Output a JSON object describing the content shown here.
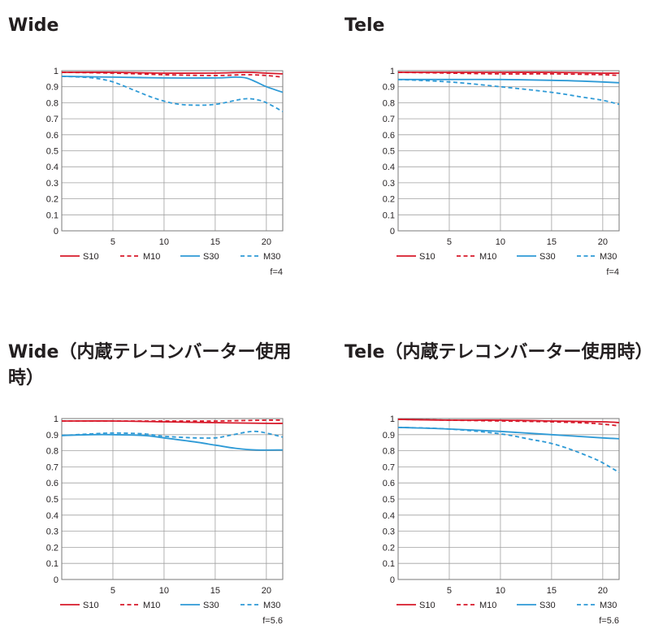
{
  "chart_data": [
    {
      "type": "line",
      "title": "Wide",
      "aperture": "f=4",
      "xlim": [
        0,
        21.6
      ],
      "ylim": [
        0,
        1
      ],
      "x_ticks": [
        "5",
        "10",
        "15",
        "20"
      ],
      "y_ticks": [
        "0",
        "0.1",
        "0.2",
        "0.3",
        "0.4",
        "0.5",
        "0.6",
        "0.7",
        "0.8",
        "0.9",
        "1"
      ],
      "grid": true,
      "legend_position": "bottom",
      "series": [
        {
          "name": "S10",
          "color": "#d7192a",
          "dash": false,
          "points": [
            [
              0,
              0.99
            ],
            [
              5,
              0.99
            ],
            [
              10,
              0.985
            ],
            [
              15,
              0.985
            ],
            [
              18,
              0.99
            ],
            [
              20,
              0.985
            ],
            [
              21.6,
              0.98
            ]
          ]
        },
        {
          "name": "M10",
          "color": "#d7192a",
          "dash": true,
          "points": [
            [
              0,
              0.99
            ],
            [
              5,
              0.985
            ],
            [
              10,
              0.975
            ],
            [
              15,
              0.97
            ],
            [
              18,
              0.975
            ],
            [
              20,
              0.97
            ],
            [
              21.6,
              0.96
            ]
          ]
        },
        {
          "name": "S30",
          "color": "#2e9ad6",
          "dash": false,
          "points": [
            [
              0,
              0.965
            ],
            [
              5,
              0.96
            ],
            [
              10,
              0.955
            ],
            [
              15,
              0.955
            ],
            [
              17,
              0.96
            ],
            [
              18,
              0.955
            ],
            [
              19,
              0.93
            ],
            [
              20,
              0.9
            ],
            [
              21.6,
              0.865
            ]
          ]
        },
        {
          "name": "M30",
          "color": "#2e9ad6",
          "dash": true,
          "points": [
            [
              0,
              0.965
            ],
            [
              3,
              0.955
            ],
            [
              5,
              0.93
            ],
            [
              7,
              0.88
            ],
            [
              9,
              0.83
            ],
            [
              11,
              0.795
            ],
            [
              13,
              0.785
            ],
            [
              15,
              0.79
            ],
            [
              17,
              0.815
            ],
            [
              18,
              0.825
            ],
            [
              19,
              0.82
            ],
            [
              20,
              0.8
            ],
            [
              21.6,
              0.745
            ]
          ]
        }
      ]
    },
    {
      "type": "line",
      "title": "Tele",
      "aperture": "f=4",
      "xlim": [
        0,
        21.6
      ],
      "ylim": [
        0,
        1
      ],
      "x_ticks": [
        "5",
        "10",
        "15",
        "20"
      ],
      "y_ticks": [
        "0",
        "0.1",
        "0.2",
        "0.3",
        "0.4",
        "0.5",
        "0.6",
        "0.7",
        "0.8",
        "0.9",
        "1"
      ],
      "grid": true,
      "legend_position": "bottom",
      "series": [
        {
          "name": "S10",
          "color": "#d7192a",
          "dash": false,
          "points": [
            [
              0,
              0.99
            ],
            [
              5,
              0.99
            ],
            [
              10,
              0.99
            ],
            [
              15,
              0.99
            ],
            [
              20,
              0.985
            ],
            [
              21.6,
              0.985
            ]
          ]
        },
        {
          "name": "M10",
          "color": "#d7192a",
          "dash": true,
          "points": [
            [
              0,
              0.99
            ],
            [
              5,
              0.985
            ],
            [
              10,
              0.98
            ],
            [
              15,
              0.98
            ],
            [
              20,
              0.975
            ],
            [
              21.6,
              0.97
            ]
          ]
        },
        {
          "name": "S30",
          "color": "#2e9ad6",
          "dash": false,
          "points": [
            [
              0,
              0.945
            ],
            [
              5,
              0.945
            ],
            [
              10,
              0.945
            ],
            [
              15,
              0.94
            ],
            [
              18,
              0.935
            ],
            [
              21.6,
              0.925
            ]
          ]
        },
        {
          "name": "M30",
          "color": "#2e9ad6",
          "dash": true,
          "points": [
            [
              0,
              0.945
            ],
            [
              5,
              0.93
            ],
            [
              10,
              0.9
            ],
            [
              15,
              0.865
            ],
            [
              18,
              0.835
            ],
            [
              20,
              0.815
            ],
            [
              21.6,
              0.79
            ]
          ]
        }
      ]
    },
    {
      "type": "line",
      "title": "Wide（内蔵テレコンバーター使用時）",
      "aperture": "f=5.6",
      "xlim": [
        0,
        21.6
      ],
      "ylim": [
        0,
        1
      ],
      "x_ticks": [
        "5",
        "10",
        "15",
        "20"
      ],
      "y_ticks": [
        "0",
        "0.1",
        "0.2",
        "0.3",
        "0.4",
        "0.5",
        "0.6",
        "0.7",
        "0.8",
        "0.9",
        "1"
      ],
      "grid": true,
      "legend_position": "bottom",
      "series": [
        {
          "name": "S10",
          "color": "#d7192a",
          "dash": false,
          "points": [
            [
              0,
              0.985
            ],
            [
              5,
              0.985
            ],
            [
              10,
              0.98
            ],
            [
              15,
              0.975
            ],
            [
              20,
              0.97
            ],
            [
              21.6,
              0.97
            ]
          ]
        },
        {
          "name": "M10",
          "color": "#d7192a",
          "dash": true,
          "points": [
            [
              0,
              0.985
            ],
            [
              5,
              0.985
            ],
            [
              10,
              0.985
            ],
            [
              15,
              0.985
            ],
            [
              20,
              0.99
            ],
            [
              21.6,
              0.99
            ]
          ]
        },
        {
          "name": "S30",
          "color": "#2e9ad6",
          "dash": false,
          "points": [
            [
              0,
              0.895
            ],
            [
              3,
              0.9
            ],
            [
              5,
              0.9
            ],
            [
              8,
              0.895
            ],
            [
              10,
              0.88
            ],
            [
              13,
              0.855
            ],
            [
              15,
              0.835
            ],
            [
              17,
              0.815
            ],
            [
              19,
              0.805
            ],
            [
              21.6,
              0.805
            ]
          ]
        },
        {
          "name": "M30",
          "color": "#2e9ad6",
          "dash": true,
          "points": [
            [
              0,
              0.895
            ],
            [
              3,
              0.905
            ],
            [
              5,
              0.91
            ],
            [
              8,
              0.905
            ],
            [
              10,
              0.89
            ],
            [
              13,
              0.88
            ],
            [
              15,
              0.88
            ],
            [
              16,
              0.89
            ],
            [
              18,
              0.915
            ],
            [
              19,
              0.92
            ],
            [
              20,
              0.91
            ],
            [
              21.6,
              0.885
            ]
          ]
        }
      ]
    },
    {
      "type": "line",
      "title": "Tele（内蔵テレコンバーター使用時）",
      "aperture": "f=5.6",
      "xlim": [
        0,
        21.6
      ],
      "ylim": [
        0,
        1
      ],
      "x_ticks": [
        "5",
        "10",
        "15",
        "20"
      ],
      "y_ticks": [
        "0",
        "0.1",
        "0.2",
        "0.3",
        "0.4",
        "0.5",
        "0.6",
        "0.7",
        "0.8",
        "0.9",
        "1"
      ],
      "grid": true,
      "legend_position": "bottom",
      "series": [
        {
          "name": "S10",
          "color": "#d7192a",
          "dash": false,
          "points": [
            [
              0,
              0.995
            ],
            [
              5,
              0.99
            ],
            [
              10,
              0.99
            ],
            [
              15,
              0.985
            ],
            [
              20,
              0.98
            ],
            [
              21.6,
              0.975
            ]
          ]
        },
        {
          "name": "M10",
          "color": "#d7192a",
          "dash": true,
          "points": [
            [
              0,
              0.995
            ],
            [
              5,
              0.99
            ],
            [
              10,
              0.985
            ],
            [
              15,
              0.98
            ],
            [
              19,
              0.97
            ],
            [
              21.6,
              0.955
            ]
          ]
        },
        {
          "name": "S30",
          "color": "#2e9ad6",
          "dash": false,
          "points": [
            [
              0,
              0.945
            ],
            [
              5,
              0.935
            ],
            [
              10,
              0.92
            ],
            [
              15,
              0.9
            ],
            [
              20,
              0.88
            ],
            [
              21.6,
              0.875
            ]
          ]
        },
        {
          "name": "M30",
          "color": "#2e9ad6",
          "dash": true,
          "points": [
            [
              0,
              0.945
            ],
            [
              5,
              0.935
            ],
            [
              10,
              0.905
            ],
            [
              13,
              0.87
            ],
            [
              15,
              0.845
            ],
            [
              17,
              0.805
            ],
            [
              19,
              0.755
            ],
            [
              20,
              0.725
            ],
            [
              21.6,
              0.665
            ]
          ]
        }
      ]
    }
  ]
}
